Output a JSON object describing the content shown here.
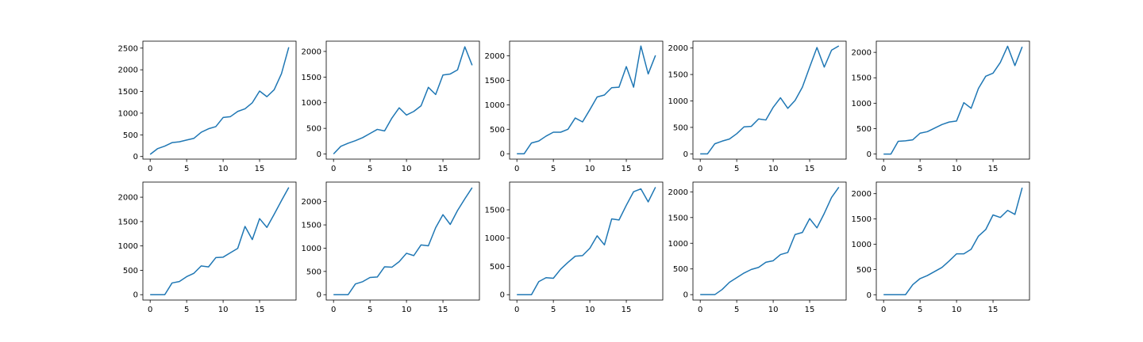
{
  "figure": {
    "rows": 2,
    "cols": 5
  },
  "chart_data": [
    {
      "type": "line",
      "x": [
        0,
        1,
        2,
        3,
        4,
        5,
        6,
        7,
        8,
        9,
        10,
        11,
        12,
        13,
        14,
        15,
        16,
        17,
        18,
        19
      ],
      "series": [
        {
          "values": [
            50,
            180,
            240,
            320,
            340,
            380,
            420,
            560,
            640,
            690,
            900,
            920,
            1040,
            1100,
            1240,
            1510,
            1380,
            1540,
            1910,
            2520
          ],
          "color": "#1f77b4"
        }
      ],
      "xlim": [
        -1,
        20
      ],
      "ylim": [
        -60,
        2660
      ],
      "xticks": [
        0,
        5,
        10,
        15
      ],
      "yticks": [
        0,
        500,
        1000,
        1500,
        2000,
        2500
      ],
      "title": "",
      "xlabel": "",
      "ylabel": ""
    },
    {
      "type": "line",
      "x": [
        0,
        1,
        2,
        3,
        4,
        5,
        6,
        7,
        8,
        9,
        10,
        11,
        12,
        13,
        14,
        15,
        16,
        17,
        18,
        19
      ],
      "series": [
        {
          "values": [
            0,
            150,
            210,
            260,
            320,
            400,
            480,
            450,
            700,
            900,
            760,
            830,
            940,
            1300,
            1160,
            1540,
            1560,
            1640,
            2090,
            1730
          ],
          "color": "#1f77b4"
        }
      ],
      "xlim": [
        -1,
        20
      ],
      "ylim": [
        -100,
        2200
      ],
      "xticks": [
        0,
        5,
        10,
        15
      ],
      "yticks": [
        0,
        500,
        1000,
        1500,
        2000
      ],
      "title": "",
      "xlabel": "",
      "ylabel": ""
    },
    {
      "type": "line",
      "x": [
        0,
        1,
        2,
        3,
        4,
        5,
        6,
        7,
        8,
        9,
        10,
        11,
        12,
        13,
        14,
        15,
        16,
        17,
        18,
        19
      ],
      "series": [
        {
          "values": [
            0,
            0,
            220,
            260,
            360,
            440,
            440,
            500,
            730,
            650,
            900,
            1160,
            1200,
            1350,
            1360,
            1780,
            1360,
            2200,
            1630,
            2010
          ],
          "color": "#1f77b4"
        }
      ],
      "xlim": [
        -1,
        20
      ],
      "ylim": [
        -110,
        2300
      ],
      "xticks": [
        0,
        5,
        10,
        15
      ],
      "yticks": [
        0,
        500,
        1000,
        1500,
        2000
      ],
      "title": "",
      "xlabel": "",
      "ylabel": ""
    },
    {
      "type": "line",
      "x": [
        0,
        1,
        2,
        3,
        4,
        5,
        6,
        7,
        8,
        9,
        10,
        11,
        12,
        13,
        14,
        15,
        16,
        17,
        18,
        19
      ],
      "series": [
        {
          "values": [
            0,
            0,
            190,
            240,
            280,
            380,
            510,
            520,
            660,
            640,
            880,
            1060,
            860,
            1010,
            1260,
            1640,
            2010,
            1640,
            1960,
            2040
          ],
          "color": "#1f77b4"
        }
      ],
      "xlim": [
        -1,
        20
      ],
      "ylim": [
        -100,
        2130
      ],
      "xticks": [
        0,
        5,
        10,
        15
      ],
      "yticks": [
        0,
        500,
        1000,
        1500,
        2000
      ],
      "title": "",
      "xlabel": "",
      "ylabel": ""
    },
    {
      "type": "line",
      "x": [
        0,
        1,
        2,
        3,
        4,
        5,
        6,
        7,
        8,
        9,
        10,
        11,
        12,
        13,
        14,
        15,
        16,
        17,
        18,
        19
      ],
      "series": [
        {
          "values": [
            0,
            0,
            250,
            260,
            280,
            410,
            440,
            510,
            580,
            630,
            650,
            1010,
            900,
            1290,
            1530,
            1590,
            1800,
            2120,
            1740,
            2110
          ],
          "color": "#1f77b4"
        }
      ],
      "xlim": [
        -1,
        20
      ],
      "ylim": [
        -100,
        2220
      ],
      "xticks": [
        0,
        5,
        10,
        15
      ],
      "yticks": [
        0,
        500,
        1000,
        1500,
        2000
      ],
      "title": "",
      "xlabel": "",
      "ylabel": ""
    },
    {
      "type": "line",
      "x": [
        0,
        1,
        2,
        3,
        4,
        5,
        6,
        7,
        8,
        9,
        10,
        11,
        12,
        13,
        14,
        15,
        16,
        17,
        18,
        19
      ],
      "series": [
        {
          "values": [
            0,
            0,
            0,
            240,
            270,
            370,
            440,
            590,
            570,
            760,
            770,
            860,
            950,
            1400,
            1130,
            1560,
            1380,
            1650,
            1930,
            2200
          ],
          "color": "#1f77b4"
        }
      ],
      "xlim": [
        -1,
        20
      ],
      "ylim": [
        -110,
        2310
      ],
      "xticks": [
        0,
        5,
        10,
        15
      ],
      "yticks": [
        0,
        500,
        1000,
        1500,
        2000
      ],
      "title": "",
      "xlabel": "",
      "ylabel": ""
    },
    {
      "type": "line",
      "x": [
        0,
        1,
        2,
        3,
        4,
        5,
        6,
        7,
        8,
        9,
        10,
        11,
        12,
        13,
        14,
        15,
        16,
        17,
        18,
        19
      ],
      "series": [
        {
          "values": [
            0,
            0,
            0,
            230,
            280,
            370,
            380,
            600,
            590,
            710,
            890,
            840,
            1070,
            1050,
            1440,
            1720,
            1510,
            1810,
            2060,
            2300
          ],
          "color": "#1f77b4"
        }
      ],
      "xlim": [
        -1,
        20
      ],
      "ylim": [
        -115,
        2420
      ],
      "xticks": [
        0,
        5,
        10,
        15
      ],
      "yticks": [
        0,
        500,
        1000,
        1500,
        2000
      ],
      "title": "",
      "xlabel": "",
      "ylabel": ""
    },
    {
      "type": "line",
      "x": [
        0,
        1,
        2,
        3,
        4,
        5,
        6,
        7,
        8,
        9,
        10,
        11,
        12,
        13,
        14,
        15,
        16,
        17,
        18,
        19
      ],
      "series": [
        {
          "values": [
            0,
            0,
            0,
            230,
            300,
            290,
            450,
            570,
            680,
            690,
            820,
            1040,
            880,
            1340,
            1320,
            1580,
            1820,
            1870,
            1640,
            1900
          ],
          "color": "#1f77b4"
        }
      ],
      "xlim": [
        -1,
        20
      ],
      "ylim": [
        -95,
        1990
      ],
      "xticks": [
        0,
        5,
        10,
        15
      ],
      "yticks": [
        0,
        500,
        1000,
        1500
      ],
      "title": "",
      "xlabel": "",
      "ylabel": ""
    },
    {
      "type": "line",
      "x": [
        0,
        1,
        2,
        3,
        4,
        5,
        6,
        7,
        8,
        9,
        10,
        11,
        12,
        13,
        14,
        15,
        16,
        17,
        18,
        19
      ],
      "series": [
        {
          "values": [
            0,
            0,
            0,
            100,
            240,
            330,
            420,
            490,
            530,
            630,
            660,
            780,
            820,
            1170,
            1210,
            1480,
            1300,
            1580,
            1890,
            2090
          ],
          "color": "#1f77b4"
        }
      ],
      "xlim": [
        -1,
        20
      ],
      "ylim": [
        -105,
        2190
      ],
      "xticks": [
        0,
        5,
        10,
        15
      ],
      "yticks": [
        0,
        500,
        1000,
        1500,
        2000
      ],
      "title": "",
      "xlabel": "",
      "ylabel": ""
    },
    {
      "type": "line",
      "x": [
        0,
        1,
        2,
        3,
        4,
        5,
        6,
        7,
        8,
        9,
        10,
        11,
        12,
        13,
        14,
        15,
        16,
        17,
        18,
        19
      ],
      "series": [
        {
          "values": [
            0,
            0,
            0,
            0,
            200,
            320,
            380,
            460,
            540,
            670,
            810,
            810,
            900,
            1160,
            1290,
            1580,
            1530,
            1670,
            1590,
            2120
          ],
          "color": "#1f77b4"
        }
      ],
      "xlim": [
        -1,
        20
      ],
      "ylim": [
        -105,
        2230
      ],
      "xticks": [
        0,
        5,
        10,
        15
      ],
      "yticks": [
        0,
        500,
        1000,
        1500,
        2000
      ],
      "title": "",
      "xlabel": "",
      "ylabel": ""
    }
  ]
}
